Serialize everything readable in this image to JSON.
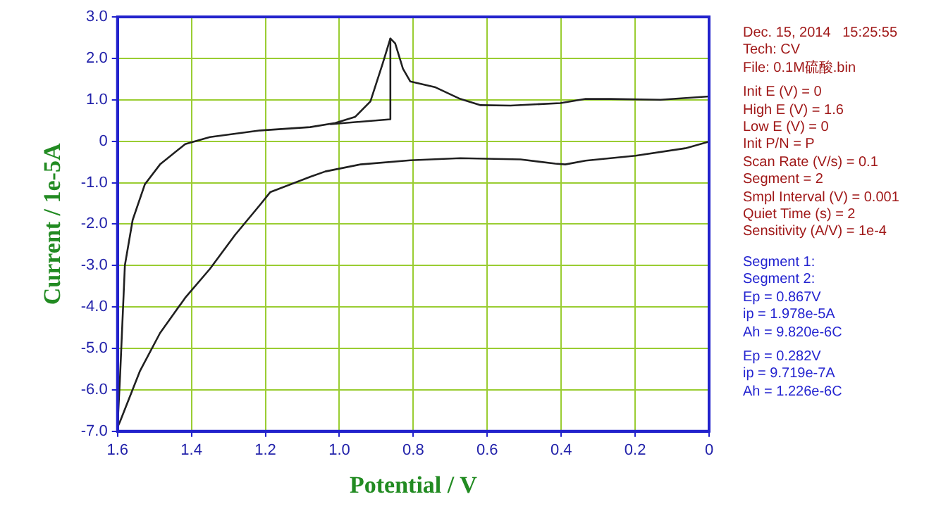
{
  "chart_data": {
    "type": "line",
    "xlabel": "Potential / V",
    "ylabel": "Current / 1e-5A",
    "xlim": [
      1.6,
      0
    ],
    "xticks": [
      1.6,
      1.4,
      1.2,
      {
        "value": 1,
        "label": "1.0"
      },
      0.8,
      0.6,
      0.4,
      0.2,
      0
    ],
    "ylim": [
      -7,
      3
    ],
    "yticks": [
      {
        "value": 3,
        "label": "3.0"
      },
      {
        "value": 2,
        "label": "2.0"
      },
      {
        "value": 1,
        "label": "1.0"
      },
      0,
      {
        "value": -1,
        "label": "-1.0"
      },
      {
        "value": -2,
        "label": "-2.0"
      },
      {
        "value": -3,
        "label": "-3.0"
      },
      {
        "value": -4,
        "label": "-4.0"
      },
      {
        "value": -5,
        "label": "-5.0"
      },
      {
        "value": -6,
        "label": "-6.0"
      },
      {
        "value": -7,
        "label": "-7.0"
      }
    ],
    "grid": true,
    "legend": false,
    "marker": "none",
    "line_style": "solid",
    "series": [
      {
        "color": "#202020",
        "x": [
          0,
          0.064,
          0.199,
          0.334,
          0.389,
          0.416,
          0.51,
          0.673,
          0.808,
          0.943,
          1.038,
          1.079,
          1.187,
          1.214,
          1.282,
          1.35,
          1.417,
          1.485,
          1.539,
          1.593,
          1.6,
          1.593,
          1.58,
          1.559,
          1.526,
          1.485,
          1.417,
          1.35,
          1.214,
          1.079,
          1.011,
          0.957,
          0.916,
          0.883,
          0.862,
          0.849,
          0.828,
          0.808,
          0.74,
          0.673,
          0.618,
          0.537,
          0.402,
          0.334,
          0.267,
          0.131,
          0
        ],
        "values": [
          -0.01,
          -0.17,
          -0.35,
          -0.47,
          -0.56,
          -0.54,
          -0.44,
          -0.41,
          -0.46,
          -0.56,
          -0.73,
          -0.86,
          -1.23,
          -1.53,
          -2.26,
          -3.08,
          -3.78,
          -4.63,
          -5.54,
          -6.76,
          -6.9,
          -5.66,
          -2.99,
          -1.9,
          -1.04,
          -0.56,
          -0.07,
          0.1,
          0.26,
          0.34,
          0.44,
          0.59,
          0.96,
          1.87,
          2.48,
          2.36,
          1.75,
          1.44,
          1.3,
          1.02,
          0.87,
          0.86,
          0.92,
          1.02,
          1.02,
          1,
          1.08
        ]
      },
      {
        "color": "#202020",
        "x": [
          1.025,
          0.862,
          0.862
        ],
        "values": [
          0.41,
          0.53,
          2.48
        ]
      }
    ],
    "annotations": [
      "Dec. 15, 2014   15:25:55",
      "Tech: CV",
      "File: 0.1M硫酸.bin",
      "Init E (V) = 0",
      "High E (V) = 1.6",
      "Low E (V) = 0",
      "Init P/N = P",
      "Scan Rate (V/s) = 0.1",
      "Segment = 2",
      "Smpl Interval (V) = 0.001",
      "Quiet Time (s) = 2",
      "Sensitivity (A/V) = 1e-4",
      "Segment 1:",
      "Segment 2:",
      "Ep = 0.867V",
      "ip = 1.978e-5A",
      "Ah = 9.820e-6C",
      "Ep = 0.282V",
      "ip = 9.719e-7A",
      "Ah = 1.226e-6C"
    ]
  }
}
